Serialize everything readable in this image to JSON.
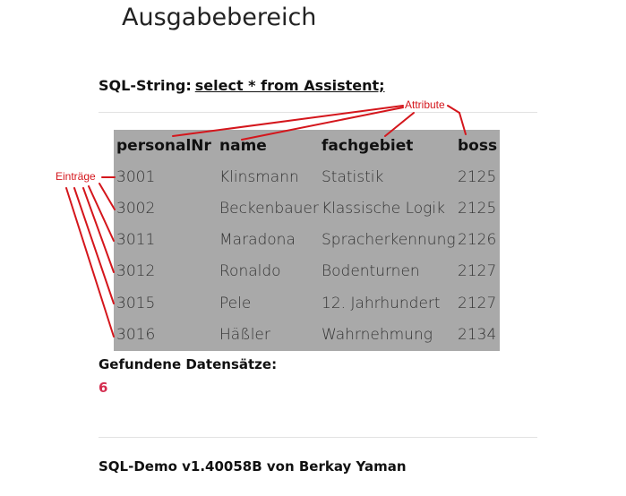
{
  "page": {
    "title": "Ausgabebereich",
    "sql_label": "SQL-String:",
    "sql_query": "select * from Assistent;",
    "found_label": "Gefundene Datensätze:",
    "found_count": "6",
    "footer": "SQL-Demo v1.40058B von Berkay Yaman"
  },
  "table": {
    "headers": [
      "personalNr",
      "name",
      "fachgebiet",
      "boss"
    ],
    "rows": [
      [
        "3001",
        "Klinsmann",
        "Statistik",
        "2125"
      ],
      [
        "3002",
        "Beckenbauer",
        "Klassische Logik",
        "2125"
      ],
      [
        "3011",
        "Maradona",
        "Spracherkennung",
        "2126"
      ],
      [
        "3012",
        "Ronaldo",
        "Bodenturnen",
        "2127"
      ],
      [
        "3015",
        "Pele",
        "12. Jahrhundert",
        "2127"
      ],
      [
        "3016",
        "Häßler",
        "Wahrnehmung",
        "2134"
      ]
    ]
  },
  "annotations": {
    "attribute_label": "Attribute",
    "entries_label": "Einträge",
    "color": "#d4161c"
  },
  "colors": {
    "table_background": "#a9a9a9",
    "count_color": "#d42d4f"
  }
}
